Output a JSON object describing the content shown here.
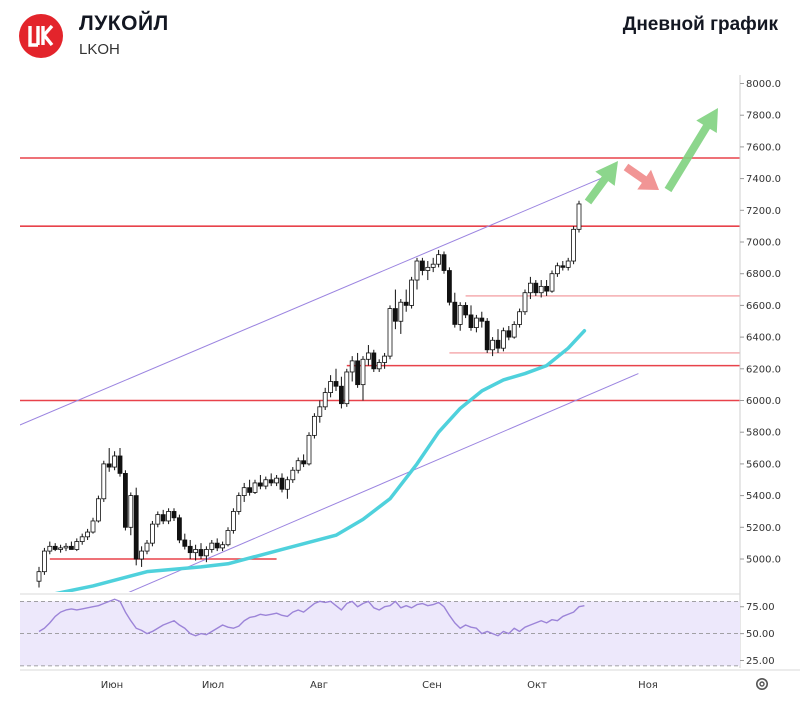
{
  "header": {
    "company": "ЛУКОЙЛ",
    "ticker": "LKOH",
    "chart_title": "Дневной график",
    "logo_text": "LK",
    "brand_color": "#e3242b"
  },
  "chart_data": [
    {
      "type": "candlestick",
      "title": "Дневной график",
      "ylim": [
        4800,
        8100
      ],
      "yticks": [
        "8000.0",
        "7800.0",
        "7600.0",
        "7400.0",
        "7200.0",
        "7000.0",
        "6800.0",
        "6600.0",
        "6400.0",
        "6200.0",
        "6000.0",
        "5800.0",
        "5600.0",
        "5400.0",
        "5200.0",
        "5000.0"
      ],
      "xlabels": [
        "Июн",
        "Июл",
        "Авг",
        "Сен",
        "Окт",
        "Ноя"
      ],
      "grid": false,
      "candles": [
        {
          "o": 4860,
          "h": 4950,
          "l": 4820,
          "c": 4920
        },
        {
          "o": 4920,
          "h": 5070,
          "l": 4900,
          "c": 5050
        },
        {
          "o": 5050,
          "h": 5110,
          "l": 5030,
          "c": 5080
        },
        {
          "o": 5080,
          "h": 5100,
          "l": 5050,
          "c": 5060
        },
        {
          "o": 5060,
          "h": 5090,
          "l": 5040,
          "c": 5070
        },
        {
          "o": 5070,
          "h": 5100,
          "l": 5050,
          "c": 5080
        },
        {
          "o": 5080,
          "h": 5110,
          "l": 5060,
          "c": 5060
        },
        {
          "o": 5060,
          "h": 5130,
          "l": 5050,
          "c": 5110
        },
        {
          "o": 5110,
          "h": 5160,
          "l": 5090,
          "c": 5140
        },
        {
          "o": 5140,
          "h": 5190,
          "l": 5120,
          "c": 5170
        },
        {
          "o": 5170,
          "h": 5260,
          "l": 5160,
          "c": 5240
        },
        {
          "o": 5240,
          "h": 5400,
          "l": 5230,
          "c": 5380
        },
        {
          "o": 5380,
          "h": 5620,
          "l": 5360,
          "c": 5600
        },
        {
          "o": 5600,
          "h": 5700,
          "l": 5550,
          "c": 5580
        },
        {
          "o": 5580,
          "h": 5680,
          "l": 5560,
          "c": 5650
        },
        {
          "o": 5650,
          "h": 5700,
          "l": 5520,
          "c": 5540
        },
        {
          "o": 5540,
          "h": 5560,
          "l": 5180,
          "c": 5200
        },
        {
          "o": 5200,
          "h": 5420,
          "l": 5150,
          "c": 5400
        },
        {
          "o": 5400,
          "h": 5450,
          "l": 4960,
          "c": 5000
        },
        {
          "o": 5000,
          "h": 5080,
          "l": 4950,
          "c": 5050
        },
        {
          "o": 5050,
          "h": 5120,
          "l": 5030,
          "c": 5100
        },
        {
          "o": 5100,
          "h": 5240,
          "l": 5080,
          "c": 5220
        },
        {
          "o": 5220,
          "h": 5300,
          "l": 5200,
          "c": 5280
        },
        {
          "o": 5280,
          "h": 5310,
          "l": 5220,
          "c": 5240
        },
        {
          "o": 5240,
          "h": 5320,
          "l": 5220,
          "c": 5300
        },
        {
          "o": 5300,
          "h": 5320,
          "l": 5240,
          "c": 5260
        },
        {
          "o": 5260,
          "h": 5280,
          "l": 5100,
          "c": 5120
        },
        {
          "o": 5120,
          "h": 5160,
          "l": 5060,
          "c": 5080
        },
        {
          "o": 5080,
          "h": 5120,
          "l": 5000,
          "c": 5040
        },
        {
          "o": 5040,
          "h": 5090,
          "l": 4990,
          "c": 5060
        },
        {
          "o": 5060,
          "h": 5100,
          "l": 5000,
          "c": 5020
        },
        {
          "o": 5020,
          "h": 5080,
          "l": 4980,
          "c": 5060
        },
        {
          "o": 5060,
          "h": 5120,
          "l": 5040,
          "c": 5100
        },
        {
          "o": 5100,
          "h": 5130,
          "l": 5050,
          "c": 5070
        },
        {
          "o": 5070,
          "h": 5110,
          "l": 5050,
          "c": 5090
        },
        {
          "o": 5090,
          "h": 5200,
          "l": 5080,
          "c": 5180
        },
        {
          "o": 5180,
          "h": 5320,
          "l": 5160,
          "c": 5300
        },
        {
          "o": 5300,
          "h": 5420,
          "l": 5280,
          "c": 5400
        },
        {
          "o": 5400,
          "h": 5480,
          "l": 5360,
          "c": 5450
        },
        {
          "o": 5450,
          "h": 5500,
          "l": 5400,
          "c": 5420
        },
        {
          "o": 5420,
          "h": 5500,
          "l": 5410,
          "c": 5480
        },
        {
          "o": 5480,
          "h": 5530,
          "l": 5440,
          "c": 5460
        },
        {
          "o": 5460,
          "h": 5520,
          "l": 5440,
          "c": 5500
        },
        {
          "o": 5500,
          "h": 5540,
          "l": 5460,
          "c": 5480
        },
        {
          "o": 5480,
          "h": 5530,
          "l": 5460,
          "c": 5510
        },
        {
          "o": 5510,
          "h": 5540,
          "l": 5420,
          "c": 5440
        },
        {
          "o": 5440,
          "h": 5520,
          "l": 5380,
          "c": 5500
        },
        {
          "o": 5500,
          "h": 5580,
          "l": 5480,
          "c": 5560
        },
        {
          "o": 5560,
          "h": 5640,
          "l": 5540,
          "c": 5620
        },
        {
          "o": 5620,
          "h": 5660,
          "l": 5580,
          "c": 5600
        },
        {
          "o": 5600,
          "h": 5800,
          "l": 5590,
          "c": 5780
        },
        {
          "o": 5780,
          "h": 5920,
          "l": 5760,
          "c": 5900
        },
        {
          "o": 5900,
          "h": 6000,
          "l": 5860,
          "c": 5960
        },
        {
          "o": 5960,
          "h": 6080,
          "l": 5940,
          "c": 6050
        },
        {
          "o": 6050,
          "h": 6160,
          "l": 6020,
          "c": 6120
        },
        {
          "o": 6120,
          "h": 6200,
          "l": 6060,
          "c": 6090
        },
        {
          "o": 6090,
          "h": 6150,
          "l": 5950,
          "c": 5980
        },
        {
          "o": 5980,
          "h": 6200,
          "l": 5960,
          "c": 6180
        },
        {
          "o": 6180,
          "h": 6280,
          "l": 6120,
          "c": 6250
        },
        {
          "o": 6250,
          "h": 6300,
          "l": 6080,
          "c": 6100
        },
        {
          "o": 6100,
          "h": 6280,
          "l": 6000,
          "c": 6260
        },
        {
          "o": 6260,
          "h": 6350,
          "l": 6220,
          "c": 6300
        },
        {
          "o": 6300,
          "h": 6320,
          "l": 6180,
          "c": 6200
        },
        {
          "o": 6200,
          "h": 6260,
          "l": 6180,
          "c": 6240
        },
        {
          "o": 6240,
          "h": 6300,
          "l": 6200,
          "c": 6280
        },
        {
          "o": 6280,
          "h": 6600,
          "l": 6260,
          "c": 6580
        },
        {
          "o": 6580,
          "h": 6700,
          "l": 6450,
          "c": 6500
        },
        {
          "o": 6500,
          "h": 6640,
          "l": 6420,
          "c": 6620
        },
        {
          "o": 6620,
          "h": 6700,
          "l": 6560,
          "c": 6600
        },
        {
          "o": 6600,
          "h": 6780,
          "l": 6580,
          "c": 6760
        },
        {
          "o": 6760,
          "h": 6900,
          "l": 6700,
          "c": 6880
        },
        {
          "o": 6880,
          "h": 6900,
          "l": 6790,
          "c": 6820
        },
        {
          "o": 6820,
          "h": 6880,
          "l": 6760,
          "c": 6840
        },
        {
          "o": 6840,
          "h": 6900,
          "l": 6810,
          "c": 6860
        },
        {
          "o": 6860,
          "h": 6950,
          "l": 6840,
          "c": 6920
        },
        {
          "o": 6920,
          "h": 6940,
          "l": 6800,
          "c": 6820
        },
        {
          "o": 6820,
          "h": 6840,
          "l": 6600,
          "c": 6620
        },
        {
          "o": 6620,
          "h": 6680,
          "l": 6460,
          "c": 6480
        },
        {
          "o": 6480,
          "h": 6620,
          "l": 6440,
          "c": 6600
        },
        {
          "o": 6600,
          "h": 6620,
          "l": 6520,
          "c": 6540
        },
        {
          "o": 6540,
          "h": 6600,
          "l": 6440,
          "c": 6460
        },
        {
          "o": 6460,
          "h": 6540,
          "l": 6430,
          "c": 6520
        },
        {
          "o": 6520,
          "h": 6560,
          "l": 6460,
          "c": 6500
        },
        {
          "o": 6500,
          "h": 6520,
          "l": 6300,
          "c": 6320
        },
        {
          "o": 6320,
          "h": 6400,
          "l": 6280,
          "c": 6380
        },
        {
          "o": 6380,
          "h": 6450,
          "l": 6300,
          "c": 6330
        },
        {
          "o": 6330,
          "h": 6460,
          "l": 6310,
          "c": 6440
        },
        {
          "o": 6440,
          "h": 6470,
          "l": 6380,
          "c": 6400
        },
        {
          "o": 6400,
          "h": 6500,
          "l": 6390,
          "c": 6480
        },
        {
          "o": 6480,
          "h": 6580,
          "l": 6460,
          "c": 6560
        },
        {
          "o": 6560,
          "h": 6700,
          "l": 6540,
          "c": 6680
        },
        {
          "o": 6680,
          "h": 6780,
          "l": 6640,
          "c": 6740
        },
        {
          "o": 6740,
          "h": 6760,
          "l": 6660,
          "c": 6680
        },
        {
          "o": 6680,
          "h": 6760,
          "l": 6650,
          "c": 6720
        },
        {
          "o": 6720,
          "h": 6760,
          "l": 6660,
          "c": 6690
        },
        {
          "o": 6690,
          "h": 6820,
          "l": 6680,
          "c": 6800
        },
        {
          "o": 6800,
          "h": 6870,
          "l": 6780,
          "c": 6850
        },
        {
          "o": 6850,
          "h": 6880,
          "l": 6820,
          "c": 6840
        },
        {
          "o": 6840,
          "h": 6900,
          "l": 6820,
          "c": 6880
        },
        {
          "o": 6880,
          "h": 7100,
          "l": 6860,
          "c": 7080
        },
        {
          "o": 7080,
          "h": 7260,
          "l": 7060,
          "c": 7240
        }
      ],
      "ma_line": [
        [
          0,
          4760
        ],
        [
          10,
          4830
        ],
        [
          20,
          4920
        ],
        [
          30,
          4950
        ],
        [
          35,
          4970
        ],
        [
          45,
          5060
        ],
        [
          55,
          5150
        ],
        [
          60,
          5250
        ],
        [
          65,
          5380
        ],
        [
          70,
          5600
        ],
        [
          74,
          5800
        ],
        [
          78,
          5950
        ],
        [
          82,
          6060
        ],
        [
          86,
          6130
        ],
        [
          90,
          6170
        ],
        [
          94,
          6220
        ],
        [
          98,
          6330
        ],
        [
          101,
          6440
        ]
      ],
      "horizontal_levels": [
        {
          "value": 7530,
          "from": "start",
          "to": "end",
          "strength": "strong"
        },
        {
          "value": 7100,
          "from": "start",
          "to": "end",
          "strength": "strong"
        },
        {
          "value": 6000,
          "from": "start",
          "to": "end",
          "strength": "strong"
        },
        {
          "value": 6660,
          "from": 79,
          "to": "end",
          "strength": "weak"
        },
        {
          "value": 6300,
          "from": 76,
          "to": "end",
          "strength": "weak"
        },
        {
          "value": 6220,
          "from": 57,
          "to": "end",
          "strength": "strong"
        },
        {
          "value": 5000,
          "from": 2,
          "to": 44,
          "strength": "strong"
        }
      ],
      "channel": [
        {
          "x1": -6,
          "y1": 5810,
          "x2": 104,
          "y2": 7400
        },
        {
          "x1": 16,
          "y1": 4780,
          "x2": 111,
          "y2": 6170
        }
      ],
      "colors": {
        "up": "#26a69a",
        "down": "#ef5350",
        "candle": "#111111",
        "level": "#e8424a",
        "channel": "#9b84e0",
        "ma": "#4fd1dc",
        "rsi": "#9c84d8",
        "rsi_band": "#ede8fb",
        "arrow_up": "#7fd17f",
        "arrow_down": "#f08a8a"
      }
    },
    {
      "type": "line",
      "title": "",
      "ylim": [
        18,
        85
      ],
      "yticks": [
        "75.00",
        "50.00",
        "25.00"
      ],
      "levels": [
        80,
        50,
        20
      ],
      "values": [
        52,
        55,
        60,
        66,
        70,
        72,
        73,
        72,
        73,
        74,
        75,
        76,
        78,
        80,
        82,
        80,
        70,
        62,
        55,
        53,
        50,
        52,
        55,
        58,
        60,
        62,
        58,
        55,
        50,
        48,
        50,
        49,
        52,
        55,
        58,
        56,
        55,
        57,
        62,
        65,
        66,
        68,
        67,
        68,
        69,
        67,
        66,
        70,
        72,
        70,
        74,
        78,
        80,
        79,
        80,
        76,
        72,
        78,
        80,
        75,
        78,
        80,
        74,
        72,
        75,
        76,
        80,
        74,
        76,
        74,
        77,
        78,
        76,
        77,
        79,
        75,
        67,
        60,
        55,
        58,
        56,
        55,
        50,
        52,
        50,
        48,
        52,
        50,
        55,
        52,
        56,
        58,
        60,
        62,
        60,
        63,
        62,
        66,
        68,
        70,
        75,
        76
      ]
    }
  ]
}
